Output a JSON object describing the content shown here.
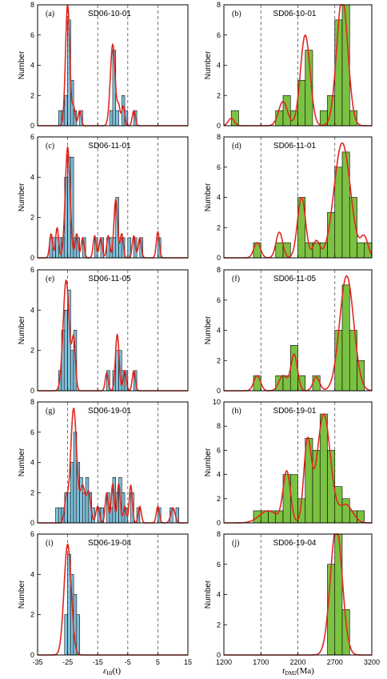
{
  "figure": {
    "left_xlabel": {
      "main": "ε",
      "sub": "Hf",
      "rest": "(t)"
    },
    "right_xlabel": {
      "main": "t",
      "sub": "DM2",
      "rest": "(Ma)"
    },
    "ylabel": "Number",
    "left_xticks": [
      -35,
      -25,
      -15,
      -5,
      5,
      15
    ],
    "right_xticks": [
      1200,
      1700,
      2200,
      2700,
      3200
    ],
    "left_dashed_lines": [
      -25,
      -15,
      -5,
      5
    ],
    "right_dashed_lines": [
      1700,
      2200,
      2700
    ],
    "colors": {
      "left_bar": "#8fd0ea",
      "right_bar": "#7cc242",
      "curve": "#e0281f",
      "bar_edge": "#000000"
    }
  },
  "chart_data": [
    {
      "type": "bar",
      "letter": "(a)",
      "title": "SD06-10-01",
      "axis": "epsilon-Hf",
      "xlim": [
        -35,
        15
      ],
      "ylim": [
        0,
        8
      ],
      "yticks": [
        0,
        2,
        4,
        6,
        8
      ],
      "bin_width": 1,
      "bars": [
        [
          -28,
          1
        ],
        [
          -27,
          1
        ],
        [
          -26,
          2
        ],
        [
          -25,
          7
        ],
        [
          -24,
          3
        ],
        [
          -23,
          1
        ],
        [
          -21,
          1
        ],
        [
          -11,
          1
        ],
        [
          -10,
          5
        ],
        [
          -9,
          1
        ],
        [
          -7,
          2
        ],
        [
          -6,
          1
        ],
        [
          -3,
          1
        ]
      ],
      "curve": [
        [
          -25,
          8.1,
          0.7
        ],
        [
          -23,
          1.2,
          0.5
        ],
        [
          -21,
          1,
          0.5
        ],
        [
          -10,
          5.4,
          0.8
        ],
        [
          -8,
          1.2,
          0.5
        ],
        [
          -6.5,
          1.3,
          0.5
        ],
        [
          -3,
          1,
          0.5
        ]
      ]
    },
    {
      "type": "bar",
      "letter": "(b)",
      "title": "SD06-10-01",
      "axis": "tDM2",
      "xlim": [
        1200,
        3200
      ],
      "ylim": [
        0,
        8
      ],
      "yticks": [
        0,
        2,
        4,
        6,
        8
      ],
      "bin_width": 100,
      "bars": [
        [
          1300,
          1
        ],
        [
          1900,
          1
        ],
        [
          2000,
          2
        ],
        [
          2100,
          1
        ],
        [
          2200,
          3
        ],
        [
          2300,
          5
        ],
        [
          2500,
          1
        ],
        [
          2600,
          2
        ],
        [
          2700,
          7
        ],
        [
          2800,
          8
        ],
        [
          2900,
          1
        ]
      ],
      "curve": [
        [
          1300,
          0.5,
          40
        ],
        [
          2000,
          1.6,
          60
        ],
        [
          2300,
          6,
          65
        ],
        [
          2800,
          8.5,
          75
        ]
      ]
    },
    {
      "type": "bar",
      "letter": "(c)",
      "title": "SD06-11-01",
      "axis": "epsilon-Hf",
      "xlim": [
        -35,
        15
      ],
      "ylim": [
        0,
        6
      ],
      "yticks": [
        0,
        2,
        4,
        6
      ],
      "bin_width": 1,
      "bars": [
        [
          -31,
          1
        ],
        [
          -30,
          1
        ],
        [
          -29,
          1
        ],
        [
          -28,
          1
        ],
        [
          -27,
          1
        ],
        [
          -26,
          4
        ],
        [
          -25,
          5
        ],
        [
          -24,
          5
        ],
        [
          -23,
          1
        ],
        [
          -22,
          1
        ],
        [
          -20,
          1
        ],
        [
          -16,
          1
        ],
        [
          -14,
          1
        ],
        [
          -12,
          1
        ],
        [
          -11,
          1
        ],
        [
          -10,
          1
        ],
        [
          -9,
          3
        ],
        [
          -8,
          1
        ],
        [
          -7,
          1
        ],
        [
          -5,
          1
        ],
        [
          -3,
          1
        ],
        [
          -1,
          1
        ],
        [
          5,
          1
        ]
      ],
      "curve": [
        [
          -25,
          5.5,
          0.8
        ],
        [
          -28.5,
          1.5,
          0.5
        ],
        [
          -30.5,
          1.2,
          0.5
        ],
        [
          -22,
          1.2,
          0.5
        ],
        [
          -20,
          1,
          0.5
        ],
        [
          -16,
          1.1,
          0.5
        ],
        [
          -14,
          1,
          0.5
        ],
        [
          -11.5,
          1.1,
          0.5
        ],
        [
          -9,
          2.9,
          0.6
        ],
        [
          -7,
          1.2,
          0.5
        ],
        [
          -3,
          1.1,
          0.5
        ],
        [
          -1,
          1,
          0.5
        ],
        [
          5,
          1.3,
          0.5
        ]
      ]
    },
    {
      "type": "bar",
      "letter": "(d)",
      "title": "SD06-11-01",
      "axis": "tDM2",
      "xlim": [
        1200,
        3200
      ],
      "ylim": [
        0,
        8
      ],
      "yticks": [
        0,
        2,
        4,
        6,
        8
      ],
      "bin_width": 100,
      "bars": [
        [
          1600,
          1
        ],
        [
          1900,
          1
        ],
        [
          2000,
          1
        ],
        [
          2200,
          4
        ],
        [
          2300,
          1
        ],
        [
          2400,
          1
        ],
        [
          2500,
          1
        ],
        [
          2600,
          3
        ],
        [
          2700,
          6
        ],
        [
          2800,
          7
        ],
        [
          2900,
          4
        ],
        [
          3000,
          1
        ],
        [
          3100,
          1
        ]
      ],
      "curve": [
        [
          1650,
          1,
          45
        ],
        [
          1950,
          1.7,
          45
        ],
        [
          2250,
          4,
          55
        ],
        [
          2450,
          1.1,
          45
        ],
        [
          2800,
          7.6,
          110
        ],
        [
          3100,
          1.3,
          50
        ]
      ]
    },
    {
      "type": "bar",
      "letter": "(e)",
      "title": "SD06-11-05",
      "axis": "epsilon-Hf",
      "xlim": [
        -35,
        15
      ],
      "ylim": [
        0,
        6
      ],
      "yticks": [
        0,
        2,
        4,
        6
      ],
      "bin_width": 1,
      "bars": [
        [
          -28,
          1
        ],
        [
          -27,
          3
        ],
        [
          -26,
          4
        ],
        [
          -25,
          5
        ],
        [
          -24,
          2
        ],
        [
          -23,
          3
        ],
        [
          -12,
          1
        ],
        [
          -10,
          1
        ],
        [
          -9,
          2
        ],
        [
          -8,
          2
        ],
        [
          -7,
          1
        ],
        [
          -6,
          1
        ],
        [
          -3,
          1
        ]
      ],
      "curve": [
        [
          -25.5,
          5.5,
          1
        ],
        [
          -23,
          2.5,
          0.6
        ],
        [
          -12,
          0.9,
          0.5
        ],
        [
          -8.5,
          2.8,
          0.6
        ],
        [
          -6,
          1,
          0.5
        ],
        [
          -3,
          1,
          0.5
        ]
      ]
    },
    {
      "type": "bar",
      "letter": "(f)",
      "title": "SD06-11-05",
      "axis": "tDM2",
      "xlim": [
        1200,
        3200
      ],
      "ylim": [
        0,
        8
      ],
      "yticks": [
        0,
        2,
        4,
        6,
        8
      ],
      "bin_width": 100,
      "bars": [
        [
          1600,
          1
        ],
        [
          1900,
          1
        ],
        [
          2000,
          1
        ],
        [
          2100,
          3
        ],
        [
          2200,
          1
        ],
        [
          2400,
          1
        ],
        [
          2700,
          4
        ],
        [
          2800,
          7
        ],
        [
          2900,
          4
        ],
        [
          3000,
          2
        ]
      ],
      "curve": [
        [
          1650,
          1,
          45
        ],
        [
          2000,
          1,
          55
        ],
        [
          2150,
          2.4,
          45
        ],
        [
          2450,
          0.9,
          45
        ],
        [
          2860,
          7.6,
          95
        ]
      ]
    },
    {
      "type": "bar",
      "letter": "(g)",
      "title": "SD06-19-01",
      "axis": "epsilon-Hf",
      "xlim": [
        -35,
        15
      ],
      "ylim": [
        0,
        8
      ],
      "yticks": [
        0,
        2,
        4,
        6,
        8
      ],
      "bin_width": 1,
      "bars": [
        [
          -29,
          1
        ],
        [
          -28,
          1
        ],
        [
          -27,
          1
        ],
        [
          -26,
          2
        ],
        [
          -25,
          2
        ],
        [
          -24,
          4
        ],
        [
          -23,
          6
        ],
        [
          -22,
          4
        ],
        [
          -21,
          3
        ],
        [
          -20,
          2
        ],
        [
          -19,
          3
        ],
        [
          -18,
          2
        ],
        [
          -17,
          1
        ],
        [
          -15,
          1
        ],
        [
          -14,
          1
        ],
        [
          -12,
          2
        ],
        [
          -11,
          1
        ],
        [
          -10,
          3
        ],
        [
          -9,
          2
        ],
        [
          -8,
          3
        ],
        [
          -7,
          2
        ],
        [
          -6,
          1
        ],
        [
          -4,
          2
        ],
        [
          -2,
          1
        ],
        [
          5,
          1
        ],
        [
          9,
          1
        ],
        [
          11,
          1
        ]
      ],
      "curve": [
        [
          -23,
          7.6,
          1
        ],
        [
          -25.5,
          1.5,
          0.6
        ],
        [
          -20,
          2.4,
          0.8
        ],
        [
          -18,
          2,
          0.7
        ],
        [
          -15,
          1.1,
          0.6
        ],
        [
          -12,
          2,
          0.5
        ],
        [
          -10,
          2.6,
          0.5
        ],
        [
          -8,
          2.6,
          0.5
        ],
        [
          -6,
          1.1,
          0.5
        ],
        [
          -4,
          2.5,
          0.5
        ],
        [
          -1,
          1.1,
          0.5
        ],
        [
          5,
          1.1,
          0.5
        ],
        [
          10,
          1,
          0.7
        ]
      ]
    },
    {
      "type": "bar",
      "letter": "(h)",
      "title": "SD06-19-01",
      "axis": "tDM2",
      "xlim": [
        1200,
        3200
      ],
      "ylim": [
        0,
        10
      ],
      "yticks": [
        0,
        2,
        4,
        6,
        8,
        10
      ],
      "bin_width": 100,
      "bars": [
        [
          1600,
          1
        ],
        [
          1700,
          1
        ],
        [
          1800,
          1
        ],
        [
          1900,
          1
        ],
        [
          2000,
          4
        ],
        [
          2100,
          4
        ],
        [
          2200,
          2
        ],
        [
          2300,
          7
        ],
        [
          2400,
          6
        ],
        [
          2500,
          9
        ],
        [
          2600,
          6
        ],
        [
          2700,
          3
        ],
        [
          2800,
          2
        ],
        [
          2900,
          1
        ],
        [
          3000,
          1
        ]
      ],
      "curve": [
        [
          1800,
          1,
          120
        ],
        [
          2050,
          4.2,
          50
        ],
        [
          2330,
          6.6,
          50
        ],
        [
          2550,
          9,
          90
        ],
        [
          2850,
          1.5,
          90
        ]
      ]
    },
    {
      "type": "bar",
      "letter": "(i)",
      "title": "SD06-19-04",
      "axis": "epsilon-Hf",
      "xlim": [
        -35,
        15
      ],
      "ylim": [
        0,
        6
      ],
      "yticks": [
        0,
        2,
        4,
        6
      ],
      "bin_width": 1,
      "bars": [
        [
          -26,
          2
        ],
        [
          -25,
          5
        ],
        [
          -24,
          4
        ],
        [
          -23,
          3
        ],
        [
          -22,
          2
        ]
      ],
      "curve": [
        [
          -25,
          5.5,
          1.2
        ]
      ]
    },
    {
      "type": "bar",
      "letter": "(j)",
      "title": "SD06-19-04",
      "axis": "tDM2",
      "xlim": [
        1200,
        3200
      ],
      "ylim": [
        0,
        8
      ],
      "yticks": [
        0,
        2,
        4,
        6,
        8
      ],
      "bin_width": 100,
      "bars": [
        [
          2600,
          6
        ],
        [
          2700,
          8
        ],
        [
          2800,
          3
        ]
      ],
      "curve": [
        [
          2720,
          8.5,
          80
        ]
      ]
    }
  ]
}
